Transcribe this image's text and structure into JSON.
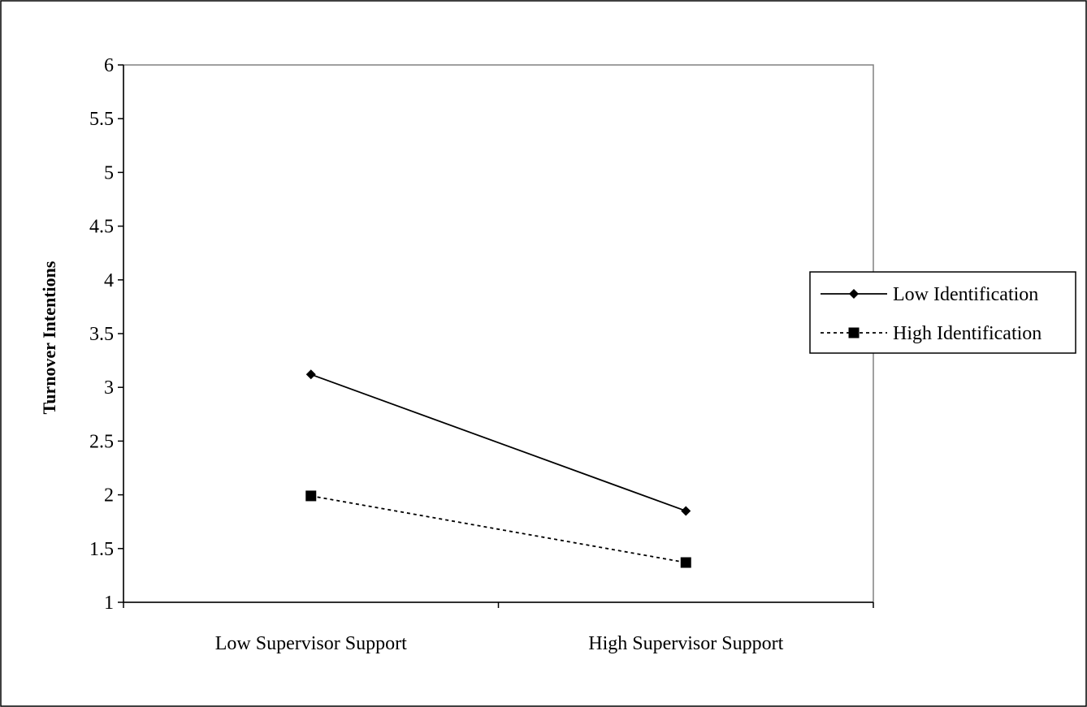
{
  "chart_data": {
    "type": "line",
    "title": "",
    "xlabel": "",
    "ylabel": "Turnover Intentions",
    "categories": [
      "Low Supervisor Support",
      "High Supervisor Support"
    ],
    "ylim": [
      1,
      6
    ],
    "yticks": [
      "1",
      "1.5",
      "2",
      "2.5",
      "3",
      "3.5",
      "4",
      "4.5",
      "5",
      "5.5",
      "6"
    ],
    "grid": false,
    "legend_position": "right",
    "series": [
      {
        "name": "Low Identification",
        "values": [
          3.12,
          1.85
        ],
        "marker": "diamond",
        "line": "solid",
        "color": "#000000"
      },
      {
        "name": "High Identification",
        "values": [
          1.99,
          1.37
        ],
        "marker": "square",
        "line": "dashed",
        "color": "#000000"
      }
    ]
  }
}
